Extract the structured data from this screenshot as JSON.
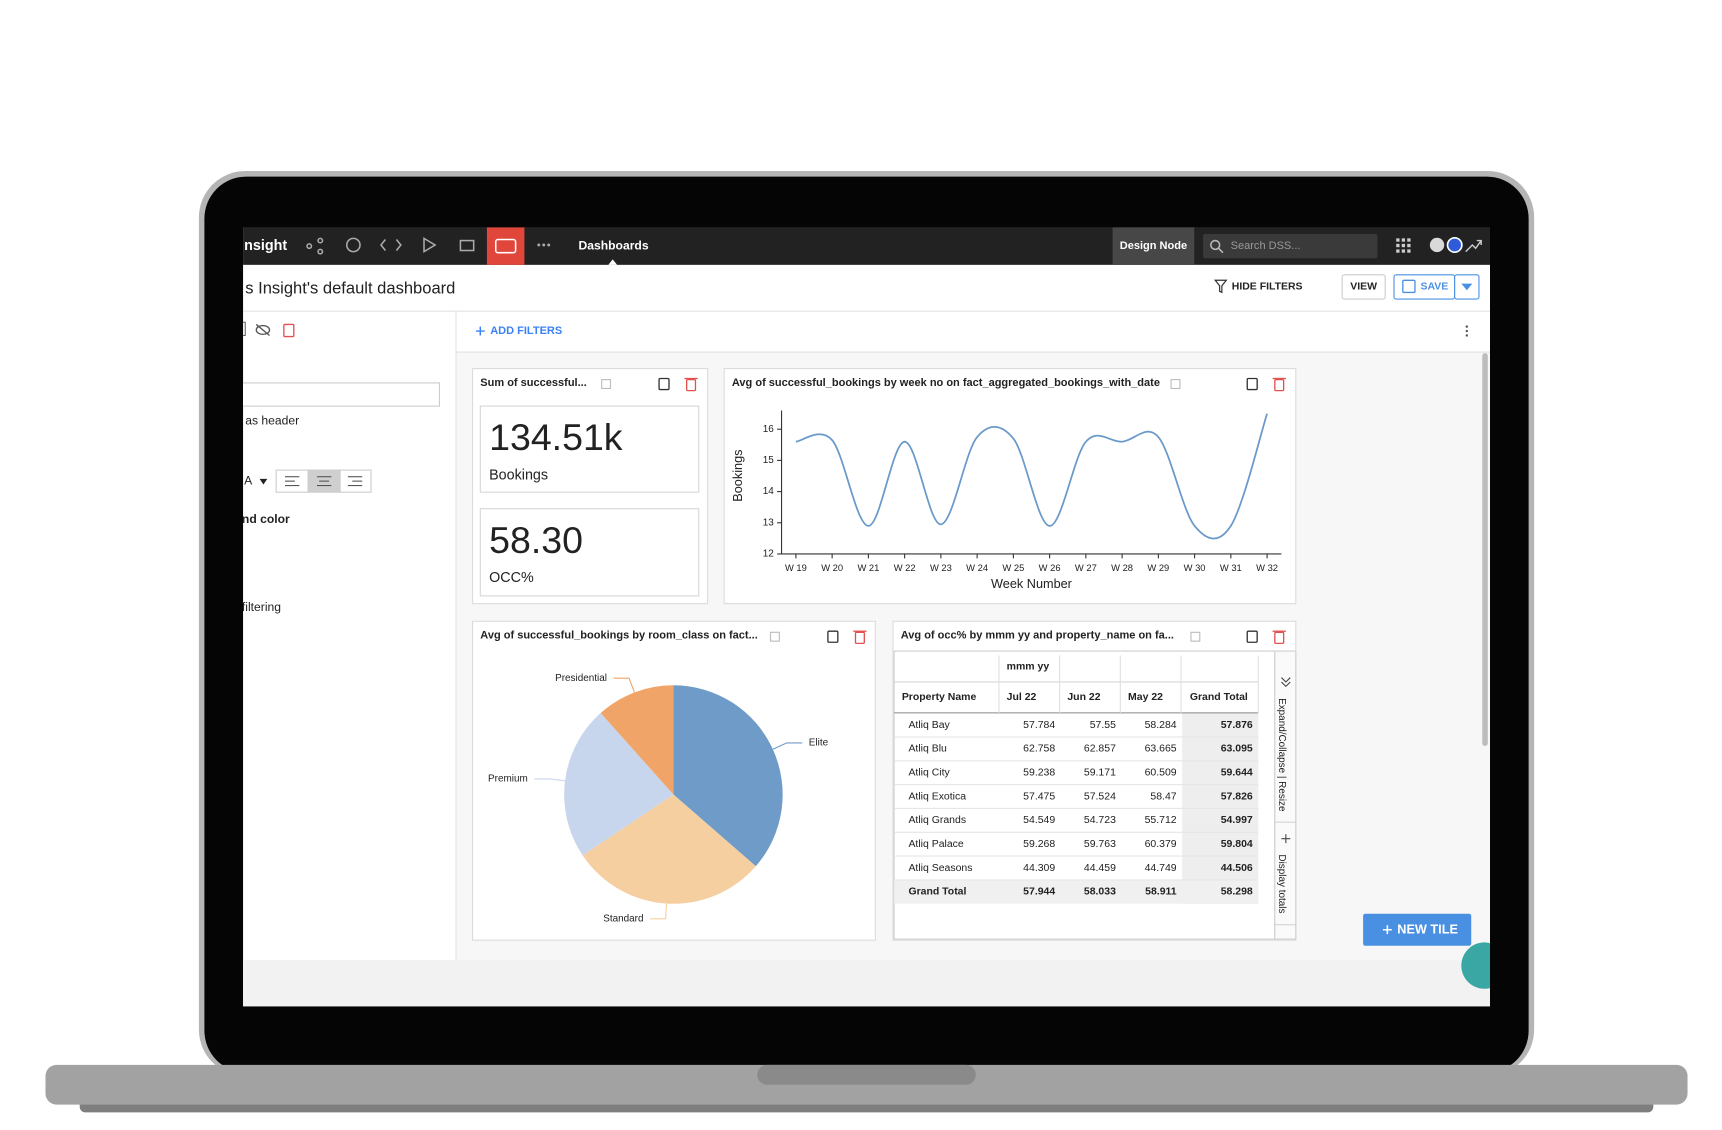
{
  "nav": {
    "brand": "nsight",
    "active": "Dashboards",
    "mode": "Design Node",
    "search": "Search DSS..."
  },
  "header": {
    "title": "s Insight's default dashboard",
    "hide_filters": "HIDE FILTERS",
    "view": "VIEW",
    "save": "SAVE"
  },
  "left_panel": {
    "labels": [
      "as header",
      "A",
      "nd color",
      "filtering"
    ]
  },
  "filters": {
    "add": "ADD FILTERS"
  },
  "new_tile": "NEW TILE",
  "kpi_tile": {
    "title": "Sum of successful...",
    "kpis": [
      {
        "value": "134.51k",
        "label": "Bookings"
      },
      {
        "value": "58.30",
        "label": "OCC%"
      }
    ]
  },
  "line_tile": {
    "title": "Avg of successful_bookings by week no on fact_aggregated_bookings_with_date",
    "chart": {
      "type": "line",
      "x_label": "Week Number",
      "y_label": "Bookings",
      "categories": [
        "W 19",
        "W 20",
        "W 21",
        "W 22",
        "W 23",
        "W 24",
        "W 25",
        "W 26",
        "W 27",
        "W 28",
        "W 29",
        "W 30",
        "W 31",
        "W 32"
      ],
      "values": [
        15.6,
        15.65,
        12.9,
        15.6,
        12.95,
        15.75,
        15.7,
        12.9,
        15.6,
        15.6,
        15.75,
        12.9,
        12.9,
        16.5
      ],
      "color": "#6a9ac9",
      "ylim": [
        12,
        16.6
      ],
      "yticks": [
        12,
        13,
        14,
        15,
        16
      ]
    }
  },
  "pie_tile": {
    "title": "Avg of successful_bookings by room_class on fact...",
    "chart": {
      "type": "pie",
      "categories": [
        "Elite",
        "Standard",
        "Premium",
        "Presidential"
      ],
      "values": [
        36.4,
        29.2,
        22.8,
        11.6
      ],
      "colors": [
        "#6f9bc8",
        "#f6cfa1",
        "#c8d6ed",
        "#f0a468"
      ]
    }
  },
  "table_tile": {
    "title": "Avg of occ% by mmm yy and property_name on fa...",
    "group_header": "mmm yy",
    "columns": [
      "Property Name",
      "Jul 22",
      "Jun 22",
      "May 22",
      "Grand Total"
    ],
    "rows": [
      [
        "Atliq Bay",
        57.784,
        57.55,
        58.284,
        57.876
      ],
      [
        "Atliq Blu",
        62.758,
        62.857,
        63.665,
        63.095
      ],
      [
        "Atliq City",
        59.238,
        59.171,
        60.509,
        59.644
      ],
      [
        "Atliq Exotica",
        57.475,
        57.524,
        58.47,
        57.826
      ],
      [
        "Atliq Grands",
        54.549,
        54.723,
        55.712,
        54.997
      ],
      [
        "Atliq Palace",
        59.268,
        59.763,
        60.379,
        59.804
      ],
      [
        "Atliq Seasons",
        44.309,
        44.459,
        44.749,
        44.506
      ],
      [
        "Grand Total",
        57.944,
        58.033,
        58.911,
        58.298
      ]
    ],
    "side_tabs": [
      "Expand/Collapse | Resize",
      "Display totals"
    ]
  }
}
